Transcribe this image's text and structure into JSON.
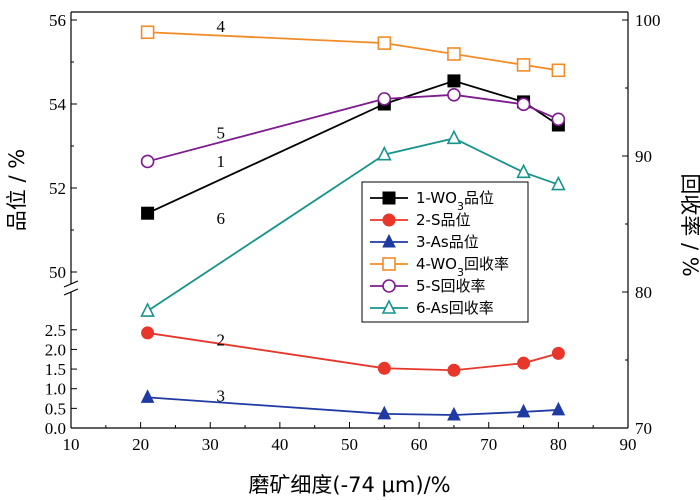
{
  "chart_data": {
    "type": "line",
    "x_axis": {
      "label": "磨矿细度(-74 μm)/%",
      "min": 10,
      "max": 90,
      "ticks": [
        10,
        20,
        30,
        40,
        50,
        60,
        70,
        80,
        90
      ]
    },
    "y_left": {
      "label": "品位 / %",
      "upper": {
        "min": 50,
        "max": 56,
        "ticks": [
          50,
          52,
          54,
          56
        ]
      },
      "lower": {
        "min": 0,
        "max": 2.8,
        "ticks": [
          0.0,
          0.5,
          1.0,
          1.5,
          2.0,
          2.5
        ]
      }
    },
    "y_right": {
      "label": "回收率 / %",
      "min": 70,
      "max": 100,
      "ticks": [
        70,
        80,
        90,
        100
      ]
    },
    "x": [
      21,
      55,
      65,
      75,
      80
    ],
    "series": [
      {
        "name": "1-WO3品位",
        "legend_main": "1-WO",
        "legend_sub": "3",
        "legend_tail": "品位",
        "annot": "1",
        "axis": "left-upper",
        "color": "#000000",
        "marker": "square-filled",
        "values": [
          51.4,
          54.0,
          54.55,
          54.05,
          53.5
        ]
      },
      {
        "name": "2-S品位",
        "legend_main": "2-S品位",
        "annot": "2",
        "axis": "left-lower",
        "color": "#e8362a",
        "marker": "circle-filled",
        "values": [
          2.42,
          1.52,
          1.47,
          1.65,
          1.9
        ]
      },
      {
        "name": "3-As品位",
        "legend_main": "3-As品位",
        "annot": "3",
        "axis": "left-lower",
        "color": "#1f3aa3",
        "marker": "triangle-filled",
        "values": [
          0.78,
          0.36,
          0.33,
          0.41,
          0.46
        ]
      },
      {
        "name": "4-WO3回收率",
        "legend_main": "4-WO",
        "legend_sub": "3",
        "legend_tail": "回收率",
        "annot": "4",
        "axis": "right",
        "color": "#f28c28",
        "marker": "square-open",
        "values": [
          99.1,
          98.3,
          97.5,
          96.7,
          96.3
        ]
      },
      {
        "name": "5-S回收率",
        "legend_main": "5-S回收率",
        "annot": "5",
        "axis": "right",
        "color": "#7d1b8f",
        "marker": "circle-open",
        "values": [
          89.6,
          94.2,
          94.5,
          93.8,
          92.7
        ]
      },
      {
        "name": "6-As回收率",
        "legend_main": "6-As回收率",
        "annot": "6",
        "axis": "right",
        "color": "#16948c",
        "marker": "triangle-open",
        "values": [
          78.6,
          90.1,
          91.3,
          88.8,
          87.9
        ]
      }
    ],
    "legend_position": "right-center",
    "grid": false
  }
}
